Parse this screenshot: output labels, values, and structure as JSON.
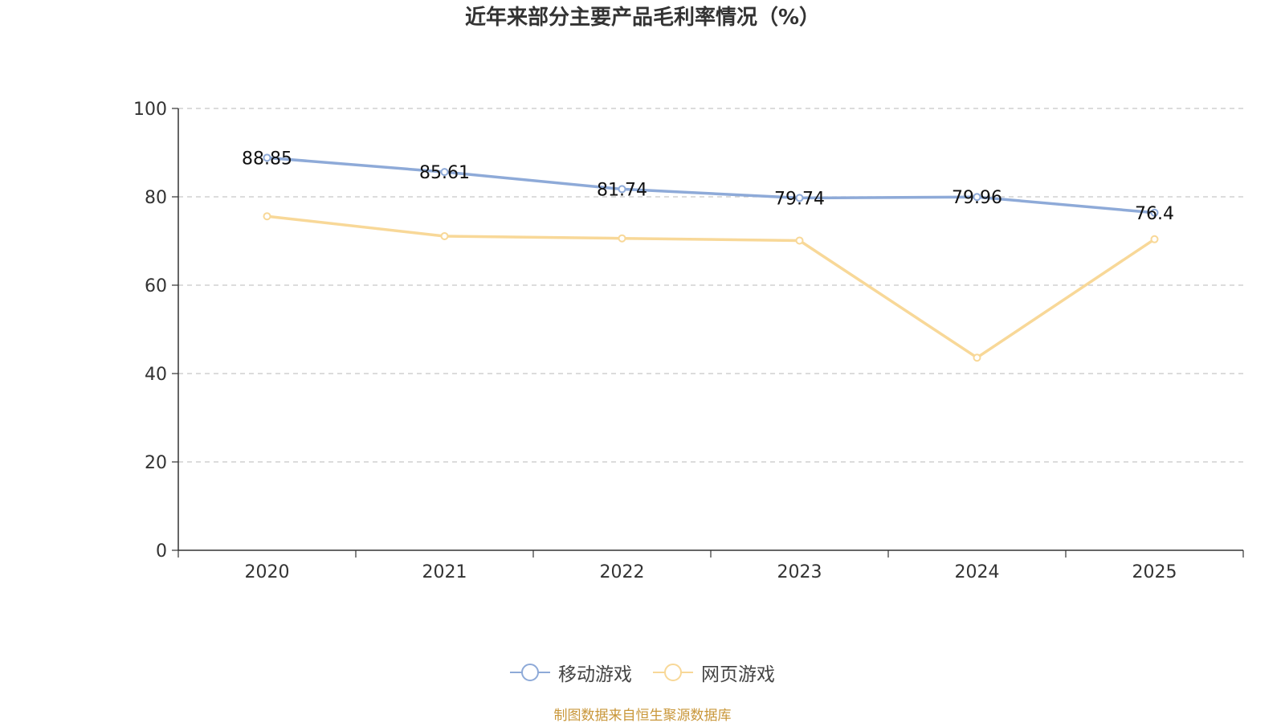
{
  "chart_data": {
    "type": "line",
    "title": "近年来部分主要产品毛利率情况（%）",
    "categories": [
      "2020",
      "2021",
      "2022",
      "2023",
      "2024",
      "2025"
    ],
    "ylim": [
      0,
      100
    ],
    "yticks": [
      0,
      20,
      40,
      60,
      80,
      100
    ],
    "xlabel": "",
    "ylabel": "",
    "grid": true,
    "legend_position": "bottom-center",
    "series": [
      {
        "name": "移动游戏",
        "color": "#8eaad8",
        "values": [
          88.85,
          85.61,
          81.74,
          79.74,
          79.96,
          76.4
        ],
        "labels": [
          "88.85",
          "85.61",
          "81.74",
          "79.74",
          "79.96",
          "76.4"
        ],
        "show_labels": true
      },
      {
        "name": "网页游戏",
        "color": "#f8d898",
        "values": [
          75.6,
          71.1,
          70.6,
          70.1,
          43.6,
          70.4
        ],
        "show_labels": false
      }
    ]
  },
  "legend": {
    "items": [
      {
        "label": "移动游戏",
        "color": "#8eaad8"
      },
      {
        "label": "网页游戏",
        "color": "#f8d898"
      }
    ]
  },
  "source_note": "制图数据来自恒生聚源数据库"
}
